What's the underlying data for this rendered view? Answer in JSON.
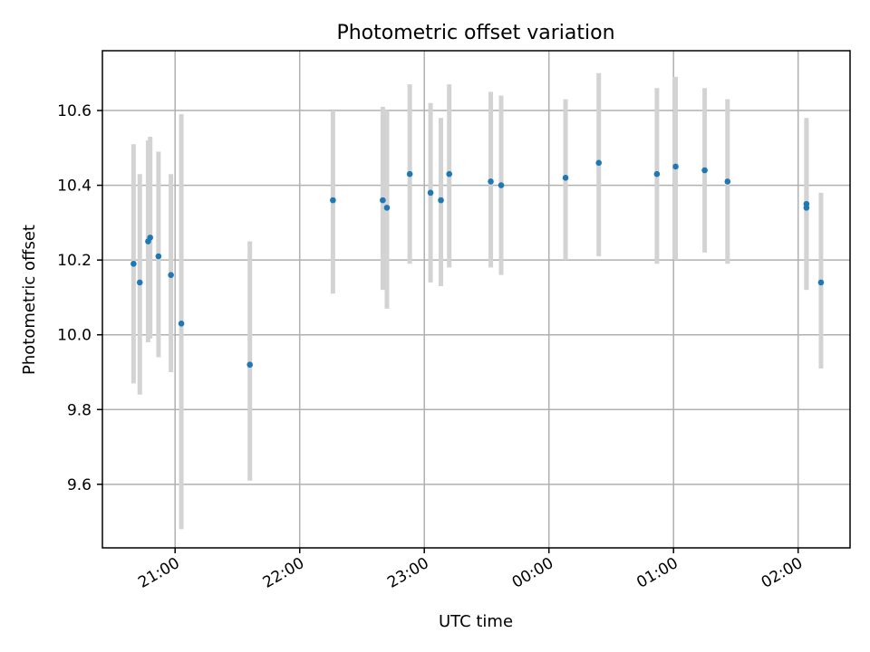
{
  "chart_data": {
    "type": "scatter",
    "title": "Photometric offset variation",
    "xlabel": "UTC time",
    "ylabel": "Photometric offset",
    "xlim": [
      "20:25",
      "02:25"
    ],
    "ylim": [
      9.43,
      10.76
    ],
    "x_ticks": [
      "21:00",
      "22:00",
      "23:00",
      "00:00",
      "01:00",
      "02:00"
    ],
    "y_ticks": [
      9.6,
      9.8,
      10.0,
      10.2,
      10.4,
      10.6
    ],
    "grid": true,
    "marker_color": "#1f77b4",
    "errorbar_color": "#d3d3d3",
    "points": [
      {
        "time": "20:40",
        "y": 10.19,
        "ylow": 9.87,
        "yhigh": 10.51
      },
      {
        "time": "20:43",
        "y": 10.14,
        "ylow": 9.84,
        "yhigh": 10.43
      },
      {
        "time": "20:47",
        "y": 10.25,
        "ylow": 9.98,
        "yhigh": 10.52
      },
      {
        "time": "20:48",
        "y": 10.26,
        "ylow": 9.99,
        "yhigh": 10.53
      },
      {
        "time": "20:52",
        "y": 10.21,
        "ylow": 9.94,
        "yhigh": 10.49
      },
      {
        "time": "20:58",
        "y": 10.16,
        "ylow": 9.9,
        "yhigh": 10.43
      },
      {
        "time": "21:03",
        "y": 10.03,
        "ylow": 9.48,
        "yhigh": 10.59
      },
      {
        "time": "21:36",
        "y": 9.92,
        "ylow": 9.61,
        "yhigh": 10.25
      },
      {
        "time": "22:16",
        "y": 10.36,
        "ylow": 10.11,
        "yhigh": 10.6
      },
      {
        "time": "22:40",
        "y": 10.36,
        "ylow": 10.12,
        "yhigh": 10.61
      },
      {
        "time": "22:42",
        "y": 10.34,
        "ylow": 10.07,
        "yhigh": 10.6
      },
      {
        "time": "22:53",
        "y": 10.43,
        "ylow": 10.19,
        "yhigh": 10.67
      },
      {
        "time": "23:03",
        "y": 10.38,
        "ylow": 10.14,
        "yhigh": 10.62
      },
      {
        "time": "23:08",
        "y": 10.36,
        "ylow": 10.13,
        "yhigh": 10.58
      },
      {
        "time": "23:12",
        "y": 10.43,
        "ylow": 10.18,
        "yhigh": 10.67
      },
      {
        "time": "23:32",
        "y": 10.41,
        "ylow": 10.18,
        "yhigh": 10.65
      },
      {
        "time": "23:37",
        "y": 10.4,
        "ylow": 10.16,
        "yhigh": 10.64
      },
      {
        "time": "00:08",
        "y": 10.42,
        "ylow": 10.2,
        "yhigh": 10.63
      },
      {
        "time": "00:24",
        "y": 10.46,
        "ylow": 10.21,
        "yhigh": 10.7
      },
      {
        "time": "00:52",
        "y": 10.43,
        "ylow": 10.19,
        "yhigh": 10.66
      },
      {
        "time": "01:01",
        "y": 10.45,
        "ylow": 10.2,
        "yhigh": 10.69
      },
      {
        "time": "01:15",
        "y": 10.44,
        "ylow": 10.22,
        "yhigh": 10.66
      },
      {
        "time": "01:26",
        "y": 10.41,
        "ylow": 10.19,
        "yhigh": 10.63
      },
      {
        "time": "02:04",
        "y": 10.34,
        "ylow": 10.12,
        "yhigh": 10.57
      },
      {
        "time": "02:04",
        "y": 10.35,
        "ylow": 10.12,
        "yhigh": 10.58
      },
      {
        "time": "02:11",
        "y": 10.14,
        "ylow": 9.91,
        "yhigh": 10.38
      }
    ]
  }
}
